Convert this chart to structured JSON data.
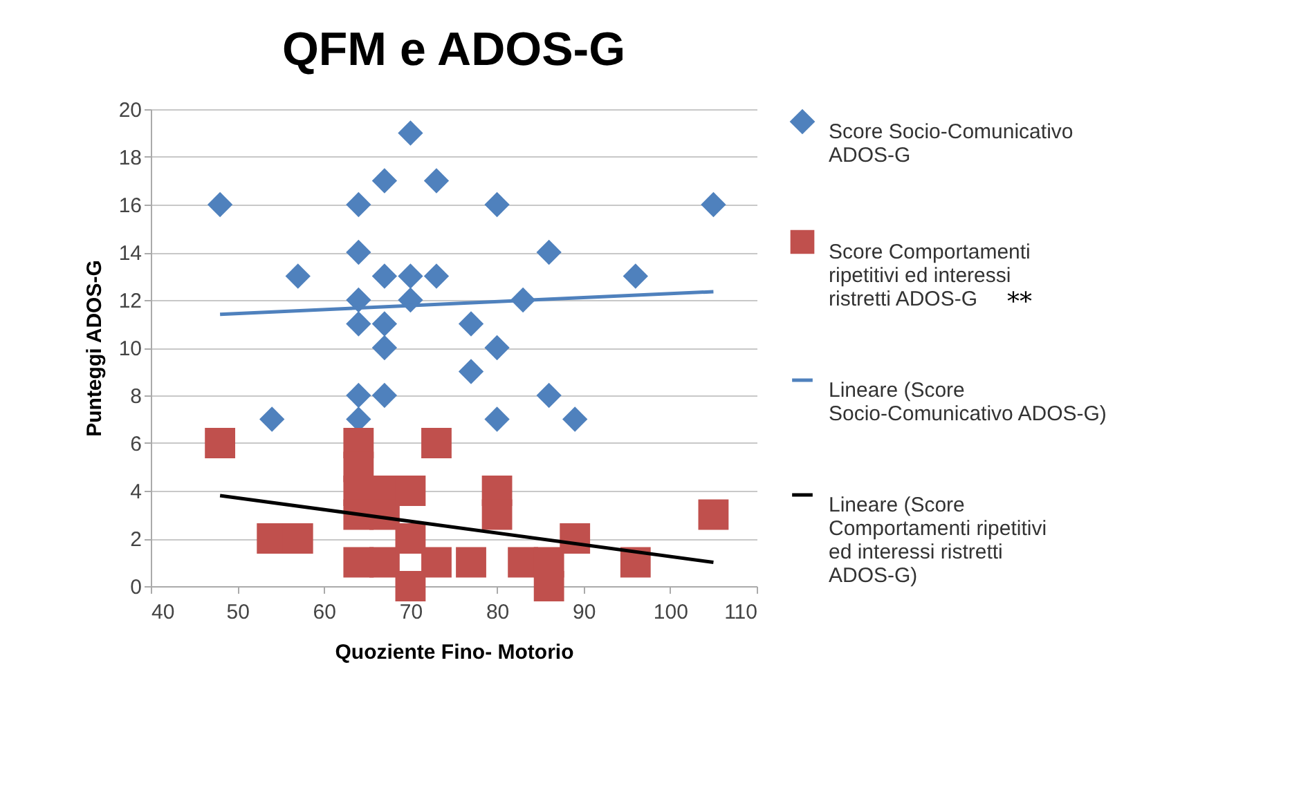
{
  "chart_data": {
    "type": "scatter",
    "title": "QFM e ADOS-G",
    "xlabel": "Quoziente Fino- Motorio",
    "ylabel": "Punteggi ADOS-G",
    "xlim": [
      40,
      110
    ],
    "xticks": [
      40,
      50,
      60,
      70,
      80,
      90,
      100,
      110
    ],
    "ylim": [
      0,
      20
    ],
    "yticks": [
      0,
      2,
      4,
      6,
      8,
      10,
      12,
      14,
      16,
      18,
      20
    ],
    "grid": "y",
    "legend": "right",
    "annotations": [
      "**"
    ],
    "series": [
      {
        "name": "Score Socio-Comunicativo ADOS-G",
        "type": "scatter",
        "marker": "diamond",
        "color": "#4f81bd",
        "x": [
          48,
          54,
          57,
          64,
          64,
          64,
          64,
          64,
          64,
          67,
          67,
          67,
          67,
          67,
          70,
          70,
          70,
          73,
          73,
          77,
          77,
          80,
          80,
          80,
          83,
          86,
          86,
          89,
          96,
          105
        ],
        "values": [
          16,
          7,
          13,
          16,
          14,
          12,
          11,
          8,
          7,
          17,
          13,
          11,
          10,
          8,
          19,
          13,
          12,
          17,
          13,
          11,
          9,
          16,
          10,
          7,
          12,
          14,
          8,
          7,
          13,
          16
        ]
      },
      {
        "name": "Score Comportamenti ripetitivi ed interessi ristretti ADOS-G",
        "type": "scatter",
        "marker": "square",
        "color": "#c0504d",
        "x": [
          48,
          54,
          57,
          64,
          64,
          64,
          64,
          64,
          67,
          67,
          67,
          70,
          70,
          70,
          73,
          73,
          77,
          80,
          80,
          83,
          86,
          86,
          89,
          96,
          105
        ],
        "values": [
          6,
          2,
          2,
          6,
          5,
          4,
          3,
          1,
          4,
          3,
          1,
          4,
          2,
          0,
          6,
          1,
          1,
          4,
          3,
          1,
          1,
          0,
          2,
          1,
          3
        ]
      },
      {
        "name": "Lineare (Score Socio-Comunicativo ADOS-G)",
        "type": "line",
        "color": "#4f81bd",
        "x": [
          48,
          105
        ],
        "values": [
          11.4,
          12.35
        ]
      },
      {
        "name": "Lineare (Score Comportamenti ripetitivi ed interessi ristretti ADOS-G)",
        "type": "line",
        "color": "#000000",
        "x": [
          48,
          105
        ],
        "values": [
          3.8,
          1.0
        ]
      }
    ]
  }
}
